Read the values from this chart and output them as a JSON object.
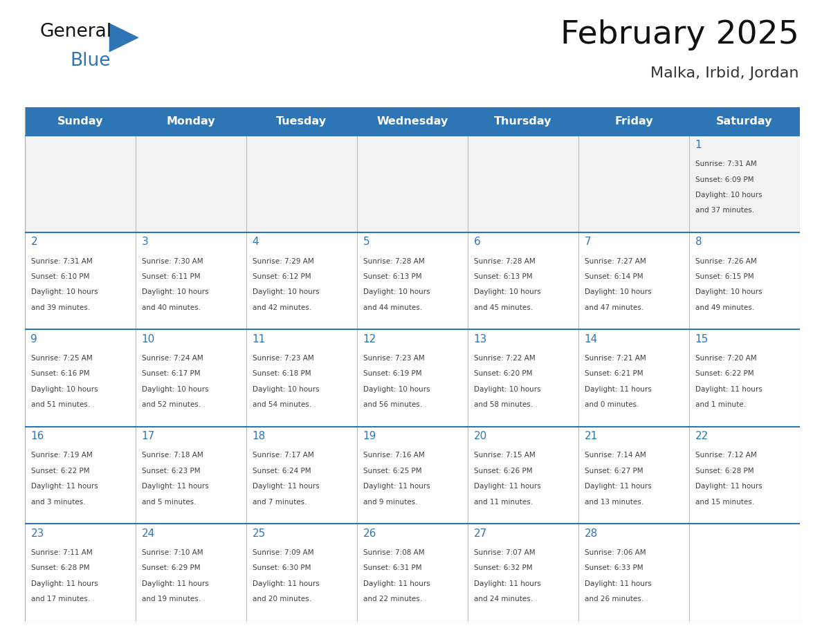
{
  "title": "February 2025",
  "subtitle": "Malka, Irbid, Jordan",
  "days_of_week": [
    "Sunday",
    "Monday",
    "Tuesday",
    "Wednesday",
    "Thursday",
    "Friday",
    "Saturday"
  ],
  "header_bg": "#2E75B6",
  "header_text": "#FFFFFF",
  "cell_bg": "#FFFFFF",
  "row1_bg": "#F2F2F2",
  "cell_border": "#AAAAAA",
  "row_sep_color": "#2E75B6",
  "day_num_color": "#2E75B6",
  "info_color": "#404040",
  "title_color": "#111111",
  "subtitle_color": "#333333",
  "logo_general_color": "#111111",
  "logo_blue_color": "#2E75B6",
  "calendar_data": {
    "1": {
      "sunrise": "7:31 AM",
      "sunset": "6:09 PM",
      "daylight_hours": 10,
      "daylight_minutes": 37
    },
    "2": {
      "sunrise": "7:31 AM",
      "sunset": "6:10 PM",
      "daylight_hours": 10,
      "daylight_minutes": 39
    },
    "3": {
      "sunrise": "7:30 AM",
      "sunset": "6:11 PM",
      "daylight_hours": 10,
      "daylight_minutes": 40
    },
    "4": {
      "sunrise": "7:29 AM",
      "sunset": "6:12 PM",
      "daylight_hours": 10,
      "daylight_minutes": 42
    },
    "5": {
      "sunrise": "7:28 AM",
      "sunset": "6:13 PM",
      "daylight_hours": 10,
      "daylight_minutes": 44
    },
    "6": {
      "sunrise": "7:28 AM",
      "sunset": "6:13 PM",
      "daylight_hours": 10,
      "daylight_minutes": 45
    },
    "7": {
      "sunrise": "7:27 AM",
      "sunset": "6:14 PM",
      "daylight_hours": 10,
      "daylight_minutes": 47
    },
    "8": {
      "sunrise": "7:26 AM",
      "sunset": "6:15 PM",
      "daylight_hours": 10,
      "daylight_minutes": 49
    },
    "9": {
      "sunrise": "7:25 AM",
      "sunset": "6:16 PM",
      "daylight_hours": 10,
      "daylight_minutes": 51
    },
    "10": {
      "sunrise": "7:24 AM",
      "sunset": "6:17 PM",
      "daylight_hours": 10,
      "daylight_minutes": 52
    },
    "11": {
      "sunrise": "7:23 AM",
      "sunset": "6:18 PM",
      "daylight_hours": 10,
      "daylight_minutes": 54
    },
    "12": {
      "sunrise": "7:23 AM",
      "sunset": "6:19 PM",
      "daylight_hours": 10,
      "daylight_minutes": 56
    },
    "13": {
      "sunrise": "7:22 AM",
      "sunset": "6:20 PM",
      "daylight_hours": 10,
      "daylight_minutes": 58
    },
    "14": {
      "sunrise": "7:21 AM",
      "sunset": "6:21 PM",
      "daylight_hours": 11,
      "daylight_minutes": 0
    },
    "15": {
      "sunrise": "7:20 AM",
      "sunset": "6:22 PM",
      "daylight_hours": 11,
      "daylight_minutes": 1
    },
    "16": {
      "sunrise": "7:19 AM",
      "sunset": "6:22 PM",
      "daylight_hours": 11,
      "daylight_minutes": 3
    },
    "17": {
      "sunrise": "7:18 AM",
      "sunset": "6:23 PM",
      "daylight_hours": 11,
      "daylight_minutes": 5
    },
    "18": {
      "sunrise": "7:17 AM",
      "sunset": "6:24 PM",
      "daylight_hours": 11,
      "daylight_minutes": 7
    },
    "19": {
      "sunrise": "7:16 AM",
      "sunset": "6:25 PM",
      "daylight_hours": 11,
      "daylight_minutes": 9
    },
    "20": {
      "sunrise": "7:15 AM",
      "sunset": "6:26 PM",
      "daylight_hours": 11,
      "daylight_minutes": 11
    },
    "21": {
      "sunrise": "7:14 AM",
      "sunset": "6:27 PM",
      "daylight_hours": 11,
      "daylight_minutes": 13
    },
    "22": {
      "sunrise": "7:12 AM",
      "sunset": "6:28 PM",
      "daylight_hours": 11,
      "daylight_minutes": 15
    },
    "23": {
      "sunrise": "7:11 AM",
      "sunset": "6:28 PM",
      "daylight_hours": 11,
      "daylight_minutes": 17
    },
    "24": {
      "sunrise": "7:10 AM",
      "sunset": "6:29 PM",
      "daylight_hours": 11,
      "daylight_minutes": 19
    },
    "25": {
      "sunrise": "7:09 AM",
      "sunset": "6:30 PM",
      "daylight_hours": 11,
      "daylight_minutes": 20
    },
    "26": {
      "sunrise": "7:08 AM",
      "sunset": "6:31 PM",
      "daylight_hours": 11,
      "daylight_minutes": 22
    },
    "27": {
      "sunrise": "7:07 AM",
      "sunset": "6:32 PM",
      "daylight_hours": 11,
      "daylight_minutes": 24
    },
    "28": {
      "sunrise": "7:06 AM",
      "sunset": "6:33 PM",
      "daylight_hours": 11,
      "daylight_minutes": 26
    }
  },
  "first_day_of_week": 6,
  "num_days": 28,
  "num_rows": 5,
  "figsize": [
    11.88,
    9.18
  ],
  "dpi": 100
}
